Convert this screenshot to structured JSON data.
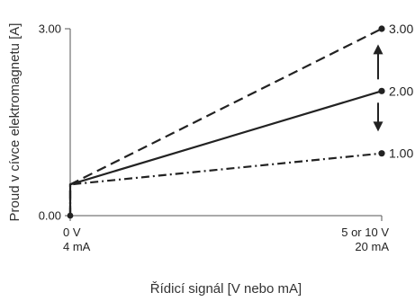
{
  "chart_data": {
    "type": "line",
    "ylabel": "Proud v cívce elektromagnetu [A]",
    "xlabel": "Řídicí signál [V nebo mA]",
    "x_ticks": [
      {
        "value": 0,
        "lines": [
          "0 V",
          "4 mA"
        ]
      },
      {
        "value": 1,
        "lines": [
          "5 or 10 V",
          "20 mA"
        ]
      }
    ],
    "y_ticks": [
      {
        "value": 0,
        "label": "0.00"
      },
      {
        "value": 3,
        "label": "3.00"
      }
    ],
    "xlim": [
      0,
      1
    ],
    "ylim": [
      0,
      3
    ],
    "series": [
      {
        "style": "dashed",
        "end_label": "3.00",
        "points": [
          [
            0,
            0
          ],
          [
            0,
            0.5
          ],
          [
            1,
            3.0
          ]
        ]
      },
      {
        "style": "solid",
        "end_label": "2.00",
        "points": [
          [
            0,
            0
          ],
          [
            0,
            0.5
          ],
          [
            1,
            2.0
          ]
        ]
      },
      {
        "style": "dash-dot",
        "end_label": "1.00",
        "points": [
          [
            0,
            0
          ],
          [
            0,
            0.5
          ],
          [
            1,
            1.0
          ]
        ]
      }
    ],
    "annotations": [
      {
        "type": "double-arrow-vertical",
        "x": 1,
        "y_from": 1.35,
        "y_to": 2.75
      }
    ],
    "grid": false,
    "colors": {
      "line": "#222222",
      "axis": "#555555"
    }
  }
}
